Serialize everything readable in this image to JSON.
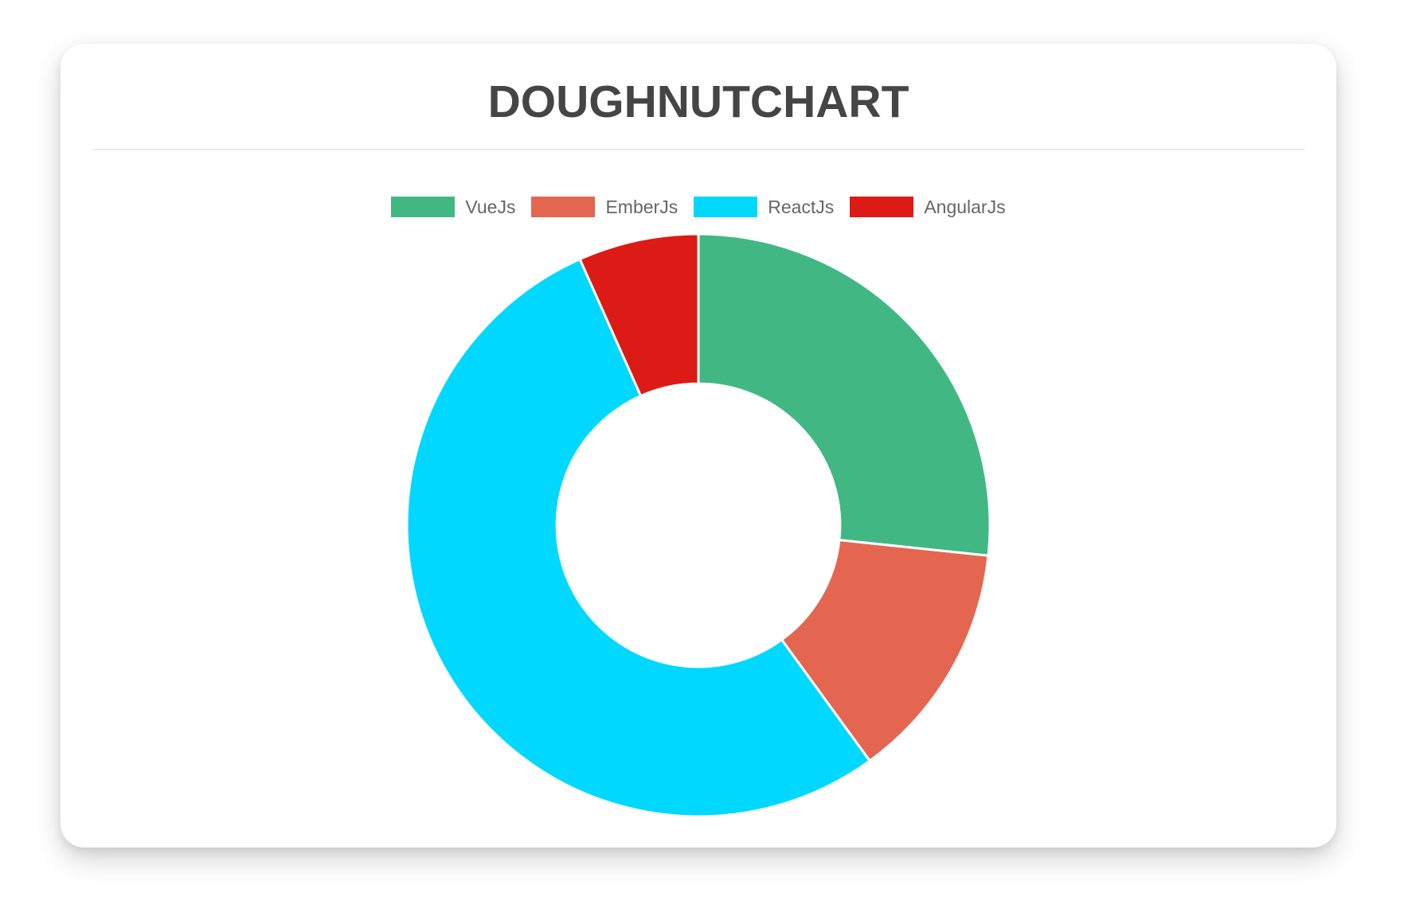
{
  "card": {
    "title": "DOUGHNUTCHART"
  },
  "theme": {
    "card_background": "#ffffff",
    "title_color": "#454545",
    "legend_text_color": "#666666",
    "divider_color": "#ededed"
  },
  "chart_data": {
    "type": "pie",
    "variant": "doughnut",
    "title": "DOUGHNUTCHART",
    "labels": [
      "VueJs",
      "EmberJs",
      "ReactJs",
      "AngularJs"
    ],
    "values": [
      40,
      20,
      80,
      10
    ],
    "colors": [
      "#41B883",
      "#E46651",
      "#00D8FF",
      "#DD1B16"
    ],
    "legend_position": "top",
    "start_angle_deg": 0,
    "cutout_percent": 50,
    "border_color": "#ffffff",
    "border_width": 3
  }
}
